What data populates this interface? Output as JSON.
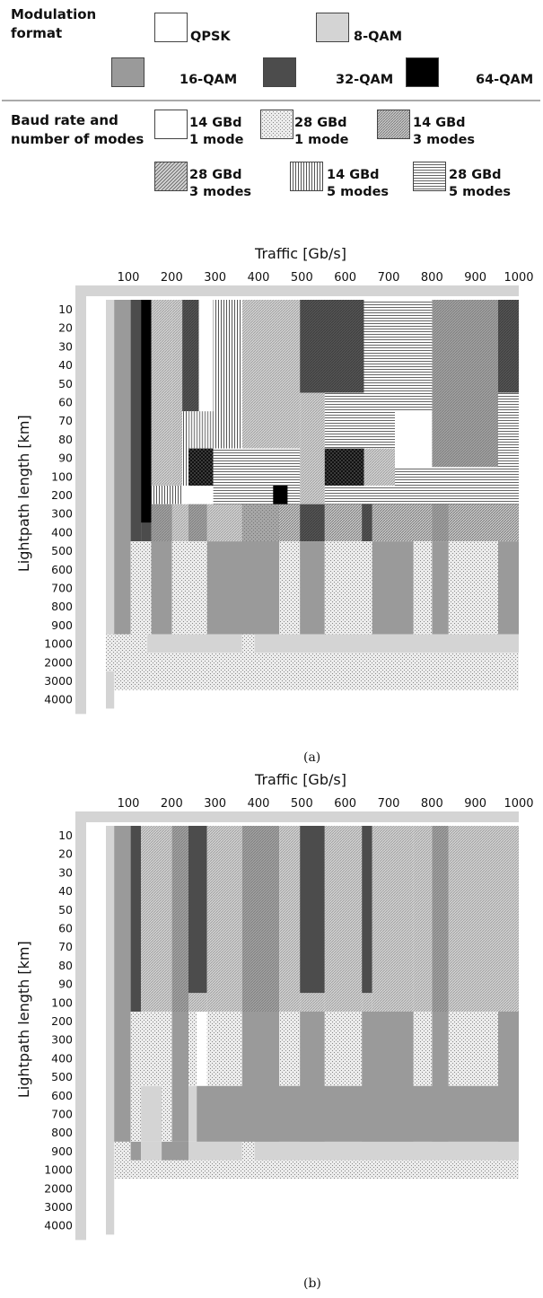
{
  "legend": {
    "modulation_heading": "Modulation\nformat",
    "modulation_items": [
      {
        "label": "QPSK",
        "pattern": "qpsk"
      },
      {
        "label": "8-QAM",
        "pattern": "q8"
      },
      {
        "label": "16-QAM",
        "pattern": "q16"
      },
      {
        "label": "32-QAM",
        "pattern": "q32"
      },
      {
        "label": "64-QAM",
        "pattern": "q64"
      }
    ],
    "baud_heading": "Baud rate and\nnumber of modes",
    "baud_items": [
      {
        "label": "14 GBd\n1 mode",
        "pattern": "b14m1"
      },
      {
        "label": "28 GBd\n1 mode",
        "pattern": "b28m1"
      },
      {
        "label": "14 GBd\n3 modes",
        "pattern": "b14m3"
      },
      {
        "label": "28 GBd\n3 modes",
        "pattern": "b28m3"
      },
      {
        "label": "14 GBd\n5 modes",
        "pattern": "b14m5"
      },
      {
        "label": "28 GBd\n5 modes",
        "pattern": "b28m5"
      }
    ]
  },
  "colors": {
    "qpsk": "#ffffff",
    "q8": "#d4d4d4",
    "q16": "#9a9a9a",
    "q32": "#4c4c4c",
    "q64": "#000000",
    "axis_bar": "#d4d4d4"
  },
  "chart_data": [
    {
      "type": "heatmap",
      "caption": "(a)",
      "xlabel": "Traffic [Gb/s]",
      "ylabel": "Lightpath length [km]",
      "x_ticks": [
        "100",
        "200",
        "300",
        "400",
        "500",
        "600",
        "700",
        "800",
        "900",
        "1000"
      ],
      "y_ticks": [
        "10",
        "20",
        "30",
        "40",
        "50",
        "60",
        "70",
        "80",
        "90",
        "100",
        "200",
        "300",
        "400",
        "500",
        "600",
        "700",
        "800",
        "900",
        "1000",
        "2000",
        "3000",
        "4000"
      ],
      "x_unit_scale": "x",
      "x_start": 0,
      "cells": [
        {
          "x": [
            0,
            10
          ],
          "y": [
            0,
            22
          ],
          "fill": "axis"
        },
        {
          "x": [
            10,
            30
          ],
          "y": [
            0,
            18
          ],
          "fill": "q16"
        },
        {
          "x": [
            30,
            40
          ],
          "y": [
            0,
            12
          ],
          "fill": "q16"
        },
        {
          "x": [
            30,
            40
          ],
          "y": [
            12,
            21
          ],
          "fill": "b28m1"
        },
        {
          "x": [
            10,
            60
          ],
          "y": [
            18,
            20
          ],
          "fill": "q8"
        },
        {
          "x": [
            60,
            100
          ],
          "y": [
            0,
            10
          ],
          "fill": "q64"
        },
        {
          "x": [
            100,
            120
          ],
          "y": [
            0,
            10
          ],
          "fill": "q32"
        },
        {
          "x": [
            100,
            120
          ],
          "y": [
            10,
            20
          ],
          "fill": "q32"
        },
        {
          "x": [
            20,
            40
          ],
          "y": [
            18,
            20
          ],
          "fill": "b28m1"
        },
        {
          "x": [
            110,
            140
          ],
          "y": [
            0,
            13
          ],
          "fill": "b28m3"
        },
        {
          "x": [
            140,
            175
          ],
          "y": [
            0,
            3
          ],
          "fill": "q32"
        },
        {
          "x": [
            140,
            175
          ],
          "y": [
            3,
            7
          ],
          "fill": "q32"
        }
      ]
    },
    {
      "type": "heatmap",
      "caption": "(b)",
      "xlabel": "Traffic [Gb/s]",
      "ylabel": "Lightpath length [km]",
      "x_ticks": [
        "100",
        "200",
        "300",
        "400",
        "500",
        "600",
        "700",
        "800",
        "900",
        "1000"
      ],
      "y_ticks": [
        "10",
        "20",
        "30",
        "40",
        "50",
        "60",
        "70",
        "80",
        "90",
        "100",
        "200",
        "300",
        "400",
        "500",
        "600",
        "700",
        "800",
        "900",
        "1000",
        "2000",
        "3000",
        "4000"
      ]
    }
  ]
}
